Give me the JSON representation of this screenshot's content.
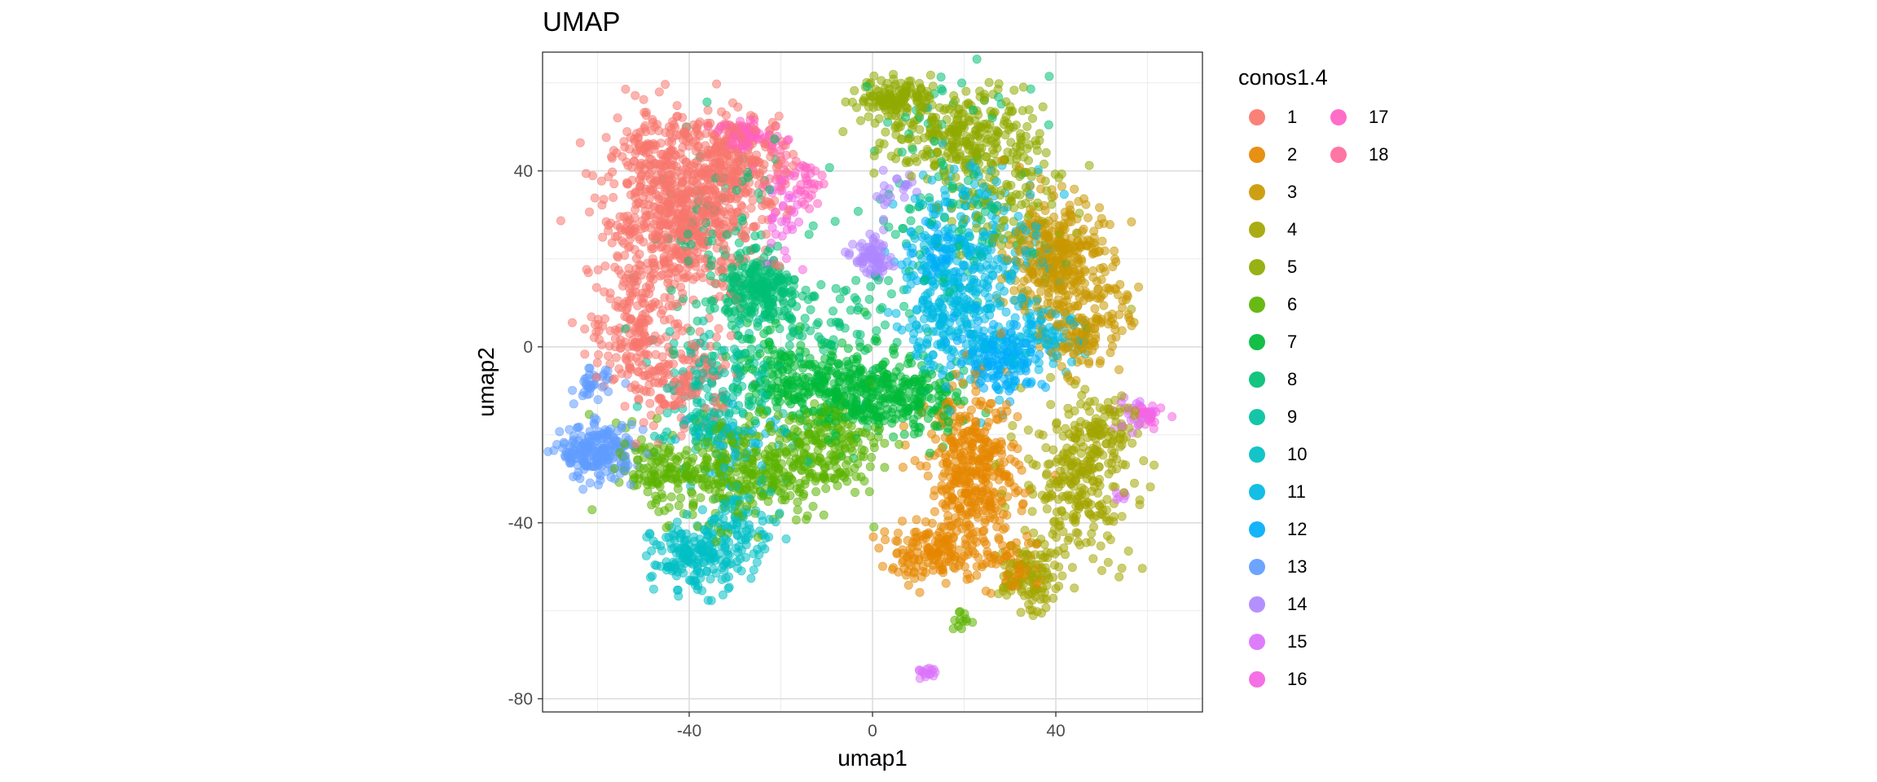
{
  "chart_data": {
    "type": "scatter",
    "title": "UMAP",
    "xlabel": "umap1",
    "ylabel": "umap2",
    "xlim": [
      -72,
      72
    ],
    "ylim": [
      -83,
      67
    ],
    "xticks": [
      -40,
      0,
      40
    ],
    "yticks": [
      -80,
      -40,
      0,
      40
    ],
    "grid": true,
    "point_alpha": 0.55,
    "legend": {
      "title": "conos1.4",
      "position": "right"
    },
    "series": [
      {
        "name": "1",
        "color": "#F8766D",
        "clusters": [
          {
            "cx": -42,
            "cy": 30,
            "sx": 8,
            "sy": 10,
            "n": 700
          },
          {
            "cx": -30,
            "cy": 42,
            "sx": 6,
            "sy": 6,
            "n": 200
          },
          {
            "cx": -52,
            "cy": 5,
            "sx": 5,
            "sy": 8,
            "n": 160
          },
          {
            "cx": -42,
            "cy": -8,
            "sx": 6,
            "sy": 5,
            "n": 140
          },
          {
            "cx": -48,
            "cy": 45,
            "sx": 4,
            "sy": 4,
            "n": 60
          }
        ]
      },
      {
        "name": "2",
        "color": "#E58700",
        "clusters": [
          {
            "cx": 22,
            "cy": -30,
            "sx": 5,
            "sy": 10,
            "n": 420
          },
          {
            "cx": 12,
            "cy": -47,
            "sx": 5,
            "sy": 3,
            "n": 120
          },
          {
            "cx": 30,
            "cy": -50,
            "sx": 3,
            "sy": 3,
            "n": 50
          }
        ]
      },
      {
        "name": "3",
        "color": "#C99800",
        "clusters": [
          {
            "cx": 40,
            "cy": 20,
            "sx": 5,
            "sy": 7,
            "n": 360
          },
          {
            "cx": 46,
            "cy": 2,
            "sx": 4,
            "sy": 4,
            "n": 90
          },
          {
            "cx": 52,
            "cy": 10,
            "sx": 3,
            "sy": 4,
            "n": 30
          }
        ]
      },
      {
        "name": "4",
        "color": "#A3A500",
        "clusters": [
          {
            "cx": 45,
            "cy": -30,
            "sx": 6,
            "sy": 9,
            "n": 280
          },
          {
            "cx": 34,
            "cy": -52,
            "sx": 3,
            "sy": 4,
            "n": 110
          },
          {
            "cx": 52,
            "cy": -18,
            "sx": 3,
            "sy": 4,
            "n": 50
          }
        ]
      },
      {
        "name": "5",
        "color": "#8FAA00",
        "clusters": [
          {
            "cx": 5,
            "cy": 57,
            "sx": 4,
            "sy": 2,
            "n": 120
          },
          {
            "cx": 20,
            "cy": 48,
            "sx": 9,
            "sy": 5,
            "n": 300
          },
          {
            "cx": 28,
            "cy": 32,
            "sx": 6,
            "sy": 6,
            "n": 90
          }
        ]
      },
      {
        "name": "6",
        "color": "#5BB300",
        "clusters": [
          {
            "cx": -28,
            "cy": -28,
            "sx": 10,
            "sy": 6,
            "n": 360
          },
          {
            "cx": -10,
            "cy": -22,
            "sx": 6,
            "sy": 5,
            "n": 160
          },
          {
            "cx": -48,
            "cy": -28,
            "sx": 4,
            "sy": 3,
            "n": 80
          },
          {
            "cx": 19,
            "cy": -62,
            "sx": 1,
            "sy": 1.5,
            "n": 12
          }
        ]
      },
      {
        "name": "7",
        "color": "#00BA38",
        "clusters": [
          {
            "cx": -5,
            "cy": -10,
            "sx": 9,
            "sy": 5,
            "n": 380
          },
          {
            "cx": 10,
            "cy": -12,
            "sx": 4,
            "sy": 4,
            "n": 90
          },
          {
            "cx": -20,
            "cy": -5,
            "sx": 5,
            "sy": 5,
            "n": 80
          }
        ]
      },
      {
        "name": "8",
        "color": "#00BF74",
        "clusters": [
          {
            "cx": -24,
            "cy": 12,
            "sx": 4,
            "sy": 4,
            "n": 200
          },
          {
            "cx": -32,
            "cy": 20,
            "sx": 8,
            "sy": 14,
            "n": 130
          },
          {
            "cx": 15,
            "cy": 30,
            "sx": 10,
            "sy": 15,
            "n": 130
          },
          {
            "cx": -10,
            "cy": 5,
            "sx": 8,
            "sy": 5,
            "n": 60
          }
        ]
      },
      {
        "name": "9",
        "color": "#00C19F",
        "clusters": [
          {
            "cx": -32,
            "cy": -8,
            "sx": 7,
            "sy": 6,
            "n": 120
          },
          {
            "cx": -38,
            "cy": -18,
            "sx": 5,
            "sy": 4,
            "n": 60
          }
        ]
      },
      {
        "name": "10",
        "color": "#00BFC4",
        "clusters": [
          {
            "cx": -38,
            "cy": -48,
            "sx": 5,
            "sy": 4,
            "n": 200
          },
          {
            "cx": -28,
            "cy": -38,
            "sx": 4,
            "sy": 4,
            "n": 70
          }
        ]
      },
      {
        "name": "11",
        "color": "#00B9E3",
        "clusters": [
          {
            "cx": 22,
            "cy": 18,
            "sx": 8,
            "sy": 12,
            "n": 360
          },
          {
            "cx": 15,
            "cy": 5,
            "sx": 5,
            "sy": 5,
            "n": 100
          },
          {
            "cx": 38,
            "cy": 2,
            "sx": 4,
            "sy": 3,
            "n": 70
          },
          {
            "cx": -30,
            "cy": -22,
            "sx": 6,
            "sy": 4,
            "n": 60
          }
        ]
      },
      {
        "name": "12",
        "color": "#00ADFA",
        "clusters": [
          {
            "cx": 28,
            "cy": -2,
            "sx": 5,
            "sy": 4,
            "n": 160
          },
          {
            "cx": 15,
            "cy": 22,
            "sx": 4,
            "sy": 4,
            "n": 60
          }
        ]
      },
      {
        "name": "13",
        "color": "#619CFF",
        "clusters": [
          {
            "cx": -60,
            "cy": -24,
            "sx": 4,
            "sy": 3,
            "n": 220
          },
          {
            "cx": -61,
            "cy": -9,
            "sx": 2,
            "sy": 2,
            "n": 35
          }
        ]
      },
      {
        "name": "14",
        "color": "#AE87FF",
        "clusters": [
          {
            "cx": 0,
            "cy": 20,
            "sx": 2,
            "sy": 2,
            "n": 80
          },
          {
            "cx": 5,
            "cy": 35,
            "sx": 3,
            "sy": 3,
            "n": 20
          }
        ]
      },
      {
        "name": "15",
        "color": "#DB72FB",
        "clusters": [
          {
            "cx": 12,
            "cy": -74,
            "sx": 1.5,
            "sy": 1,
            "n": 15
          },
          {
            "cx": 57,
            "cy": -15,
            "sx": 2,
            "sy": 2,
            "n": 20
          },
          {
            "cx": 54,
            "cy": -34,
            "sx": 1,
            "sy": 1,
            "n": 6
          }
        ]
      },
      {
        "name": "16",
        "color": "#F564E3",
        "clusters": [
          {
            "cx": 60,
            "cy": -16,
            "sx": 1.5,
            "sy": 1.5,
            "n": 30
          },
          {
            "cx": -20,
            "cy": 30,
            "sx": 2,
            "sy": 6,
            "n": 40
          }
        ]
      },
      {
        "name": "17",
        "color": "#FF61C3",
        "clusters": [
          {
            "cx": -27,
            "cy": 48,
            "sx": 4,
            "sy": 1.5,
            "n": 70
          },
          {
            "cx": -14,
            "cy": 38,
            "sx": 1.5,
            "sy": 3,
            "n": 30
          }
        ]
      },
      {
        "name": "18",
        "color": "#FF699C",
        "clusters": [
          {
            "cx": -20,
            "cy": 40,
            "sx": 2,
            "sy": 3,
            "n": 20
          }
        ]
      }
    ]
  }
}
